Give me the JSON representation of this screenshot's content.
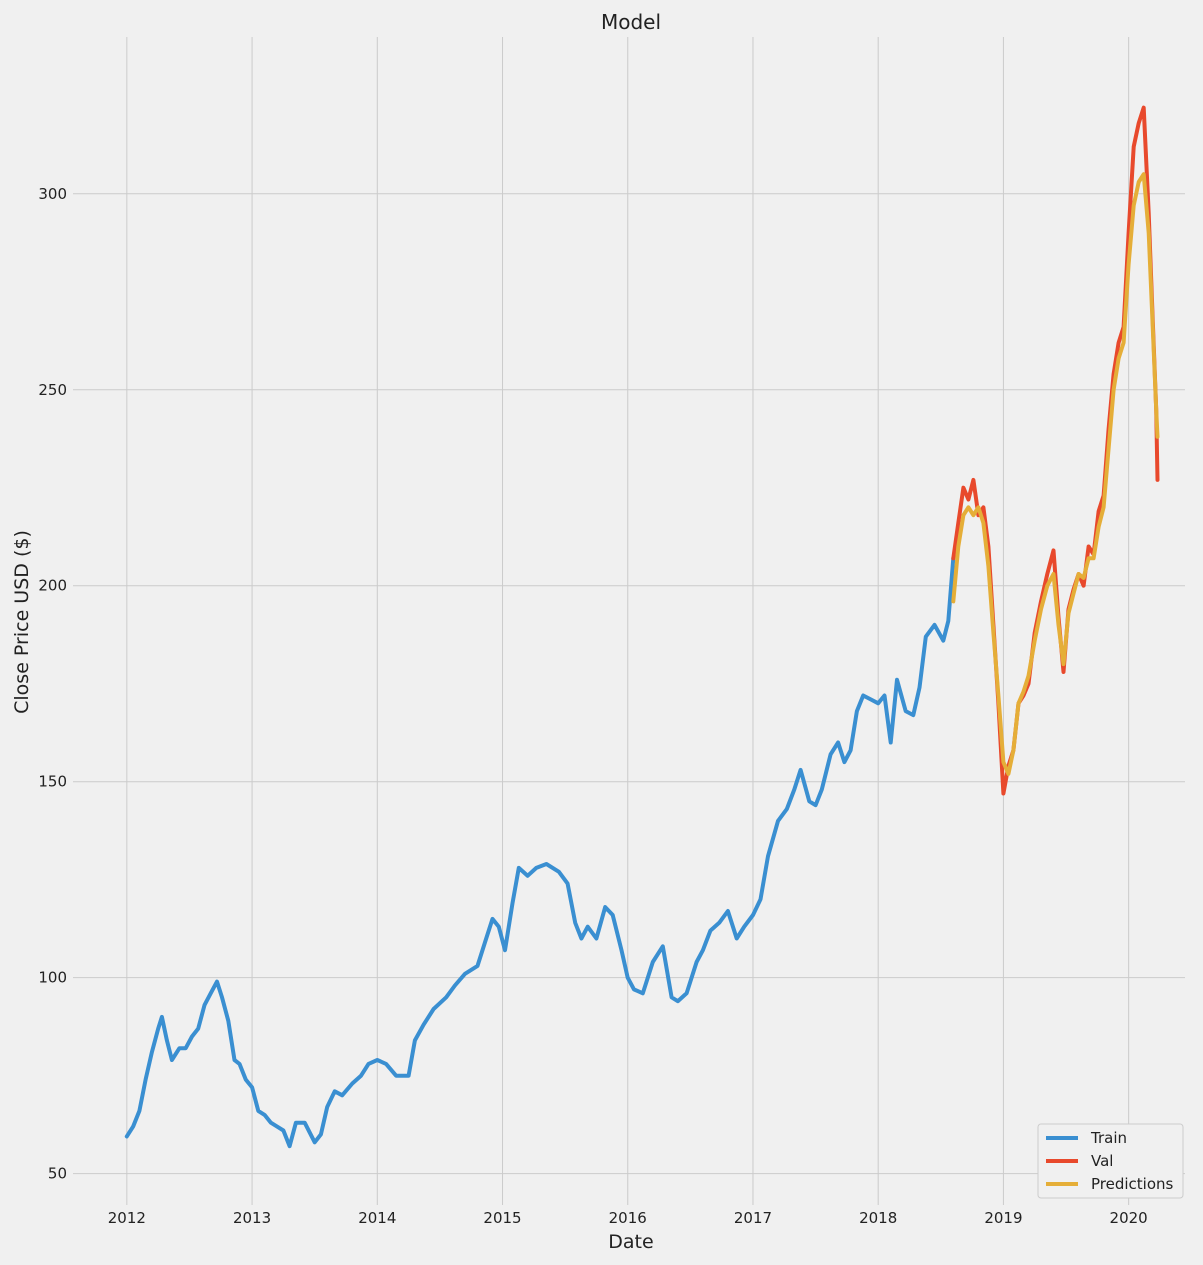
{
  "chart_data": {
    "type": "line",
    "title": "Model",
    "xlabel": "Date",
    "ylabel": "Close Price USD ($)",
    "xlim": [
      2011.57,
      2020.45
    ],
    "ylim": [
      42,
      340
    ],
    "x_ticks": [
      2012,
      2013,
      2014,
      2015,
      2016,
      2017,
      2018,
      2019,
      2020
    ],
    "y_ticks": [
      50,
      100,
      150,
      200,
      250,
      300
    ],
    "grid": true,
    "legend_position": "lower right",
    "colors": {
      "background": "#f0f0f0",
      "grid": "#cbcbcb",
      "train": "#3a8fd1",
      "val": "#e8492c",
      "predictions": "#e5ae38"
    },
    "series": [
      {
        "name": "Train",
        "color": "#3a8fd1",
        "points": [
          [
            2012.0,
            59.5
          ],
          [
            2012.05,
            62
          ],
          [
            2012.1,
            66
          ],
          [
            2012.15,
            74
          ],
          [
            2012.2,
            81
          ],
          [
            2012.25,
            87
          ],
          [
            2012.28,
            90
          ],
          [
            2012.32,
            84
          ],
          [
            2012.36,
            79
          ],
          [
            2012.42,
            82
          ],
          [
            2012.47,
            82
          ],
          [
            2012.52,
            85
          ],
          [
            2012.57,
            87
          ],
          [
            2012.62,
            93
          ],
          [
            2012.67,
            96
          ],
          [
            2012.72,
            99
          ],
          [
            2012.76,
            95
          ],
          [
            2012.81,
            89
          ],
          [
            2012.86,
            79
          ],
          [
            2012.9,
            78
          ],
          [
            2012.95,
            74
          ],
          [
            2013.0,
            72
          ],
          [
            2013.05,
            66
          ],
          [
            2013.1,
            65
          ],
          [
            2013.15,
            63
          ],
          [
            2013.2,
            62
          ],
          [
            2013.25,
            61
          ],
          [
            2013.3,
            57
          ],
          [
            2013.35,
            63
          ],
          [
            2013.42,
            63
          ],
          [
            2013.5,
            58
          ],
          [
            2013.55,
            60
          ],
          [
            2013.6,
            67
          ],
          [
            2013.66,
            71
          ],
          [
            2013.72,
            70
          ],
          [
            2013.8,
            73
          ],
          [
            2013.87,
            75
          ],
          [
            2013.93,
            78
          ],
          [
            2014.0,
            79
          ],
          [
            2014.07,
            78
          ],
          [
            2014.15,
            75
          ],
          [
            2014.25,
            75
          ],
          [
            2014.3,
            84
          ],
          [
            2014.37,
            88
          ],
          [
            2014.45,
            92
          ],
          [
            2014.55,
            95
          ],
          [
            2014.62,
            98
          ],
          [
            2014.7,
            101
          ],
          [
            2014.8,
            103
          ],
          [
            2014.87,
            110
          ],
          [
            2014.92,
            115
          ],
          [
            2014.97,
            113
          ],
          [
            2015.02,
            107
          ],
          [
            2015.08,
            119
          ],
          [
            2015.13,
            128
          ],
          [
            2015.2,
            126
          ],
          [
            2015.27,
            128
          ],
          [
            2015.35,
            129
          ],
          [
            2015.45,
            127
          ],
          [
            2015.52,
            124
          ],
          [
            2015.58,
            114
          ],
          [
            2015.63,
            110
          ],
          [
            2015.68,
            113
          ],
          [
            2015.75,
            110
          ],
          [
            2015.82,
            118
          ],
          [
            2015.88,
            116
          ],
          [
            2015.95,
            107
          ],
          [
            2016.0,
            100
          ],
          [
            2016.05,
            97
          ],
          [
            2016.12,
            96
          ],
          [
            2016.2,
            104
          ],
          [
            2016.28,
            108
          ],
          [
            2016.35,
            95
          ],
          [
            2016.4,
            94
          ],
          [
            2016.47,
            96
          ],
          [
            2016.55,
            104
          ],
          [
            2016.6,
            107
          ],
          [
            2016.66,
            112
          ],
          [
            2016.73,
            114
          ],
          [
            2016.8,
            117
          ],
          [
            2016.87,
            110
          ],
          [
            2016.93,
            113
          ],
          [
            2017.0,
            116
          ],
          [
            2017.06,
            120
          ],
          [
            2017.12,
            131
          ],
          [
            2017.2,
            140
          ],
          [
            2017.27,
            143
          ],
          [
            2017.33,
            148
          ],
          [
            2017.38,
            153
          ],
          [
            2017.45,
            145
          ],
          [
            2017.5,
            144
          ],
          [
            2017.55,
            148
          ],
          [
            2017.62,
            157
          ],
          [
            2017.68,
            160
          ],
          [
            2017.73,
            155
          ],
          [
            2017.78,
            158
          ],
          [
            2017.83,
            168
          ],
          [
            2017.88,
            172
          ],
          [
            2017.94,
            171
          ],
          [
            2018.0,
            170
          ],
          [
            2018.05,
            172
          ],
          [
            2018.1,
            160
          ],
          [
            2018.15,
            176
          ],
          [
            2018.22,
            168
          ],
          [
            2018.28,
            167
          ],
          [
            2018.33,
            174
          ],
          [
            2018.38,
            187
          ],
          [
            2018.45,
            190
          ],
          [
            2018.52,
            186
          ],
          [
            2018.56,
            191
          ],
          [
            2018.6,
            207
          ]
        ]
      },
      {
        "name": "Val",
        "color": "#e8492c",
        "points": [
          [
            2018.6,
            207
          ],
          [
            2018.64,
            216
          ],
          [
            2018.68,
            225
          ],
          [
            2018.72,
            222
          ],
          [
            2018.76,
            227
          ],
          [
            2018.8,
            218
          ],
          [
            2018.84,
            220
          ],
          [
            2018.88,
            210
          ],
          [
            2018.92,
            190
          ],
          [
            2018.96,
            170
          ],
          [
            2019.0,
            147
          ],
          [
            2019.04,
            154
          ],
          [
            2019.08,
            158
          ],
          [
            2019.12,
            170
          ],
          [
            2019.16,
            172
          ],
          [
            2019.2,
            175
          ],
          [
            2019.25,
            188
          ],
          [
            2019.3,
            196
          ],
          [
            2019.35,
            203
          ],
          [
            2019.4,
            209
          ],
          [
            2019.44,
            192
          ],
          [
            2019.48,
            178
          ],
          [
            2019.52,
            194
          ],
          [
            2019.56,
            199
          ],
          [
            2019.6,
            203
          ],
          [
            2019.64,
            200
          ],
          [
            2019.68,
            210
          ],
          [
            2019.72,
            208
          ],
          [
            2019.76,
            219
          ],
          [
            2019.8,
            223
          ],
          [
            2019.84,
            240
          ],
          [
            2019.88,
            254
          ],
          [
            2019.92,
            262
          ],
          [
            2019.96,
            266
          ],
          [
            2020.0,
            290
          ],
          [
            2020.04,
            312
          ],
          [
            2020.08,
            318
          ],
          [
            2020.12,
            322
          ],
          [
            2020.16,
            295
          ],
          [
            2020.19,
            270
          ],
          [
            2020.22,
            245
          ],
          [
            2020.23,
            227
          ]
        ]
      },
      {
        "name": "Predictions",
        "color": "#e5ae38",
        "points": [
          [
            2018.6,
            196
          ],
          [
            2018.64,
            210
          ],
          [
            2018.68,
            218
          ],
          [
            2018.72,
            220
          ],
          [
            2018.76,
            218
          ],
          [
            2018.8,
            220
          ],
          [
            2018.84,
            216
          ],
          [
            2018.88,
            205
          ],
          [
            2018.92,
            188
          ],
          [
            2018.96,
            172
          ],
          [
            2019.0,
            155
          ],
          [
            2019.04,
            152
          ],
          [
            2019.08,
            158
          ],
          [
            2019.12,
            170
          ],
          [
            2019.16,
            173
          ],
          [
            2019.2,
            177
          ],
          [
            2019.25,
            186
          ],
          [
            2019.3,
            194
          ],
          [
            2019.35,
            200
          ],
          [
            2019.4,
            203
          ],
          [
            2019.44,
            190
          ],
          [
            2019.48,
            180
          ],
          [
            2019.52,
            193
          ],
          [
            2019.56,
            198
          ],
          [
            2019.6,
            203
          ],
          [
            2019.64,
            202
          ],
          [
            2019.68,
            207
          ],
          [
            2019.72,
            207
          ],
          [
            2019.76,
            215
          ],
          [
            2019.8,
            220
          ],
          [
            2019.84,
            235
          ],
          [
            2019.88,
            250
          ],
          [
            2019.92,
            258
          ],
          [
            2019.96,
            262
          ],
          [
            2020.0,
            282
          ],
          [
            2020.04,
            297
          ],
          [
            2020.08,
            303
          ],
          [
            2020.12,
            305
          ],
          [
            2020.16,
            290
          ],
          [
            2020.19,
            268
          ],
          [
            2020.22,
            245
          ],
          [
            2020.23,
            238
          ]
        ]
      }
    ]
  }
}
